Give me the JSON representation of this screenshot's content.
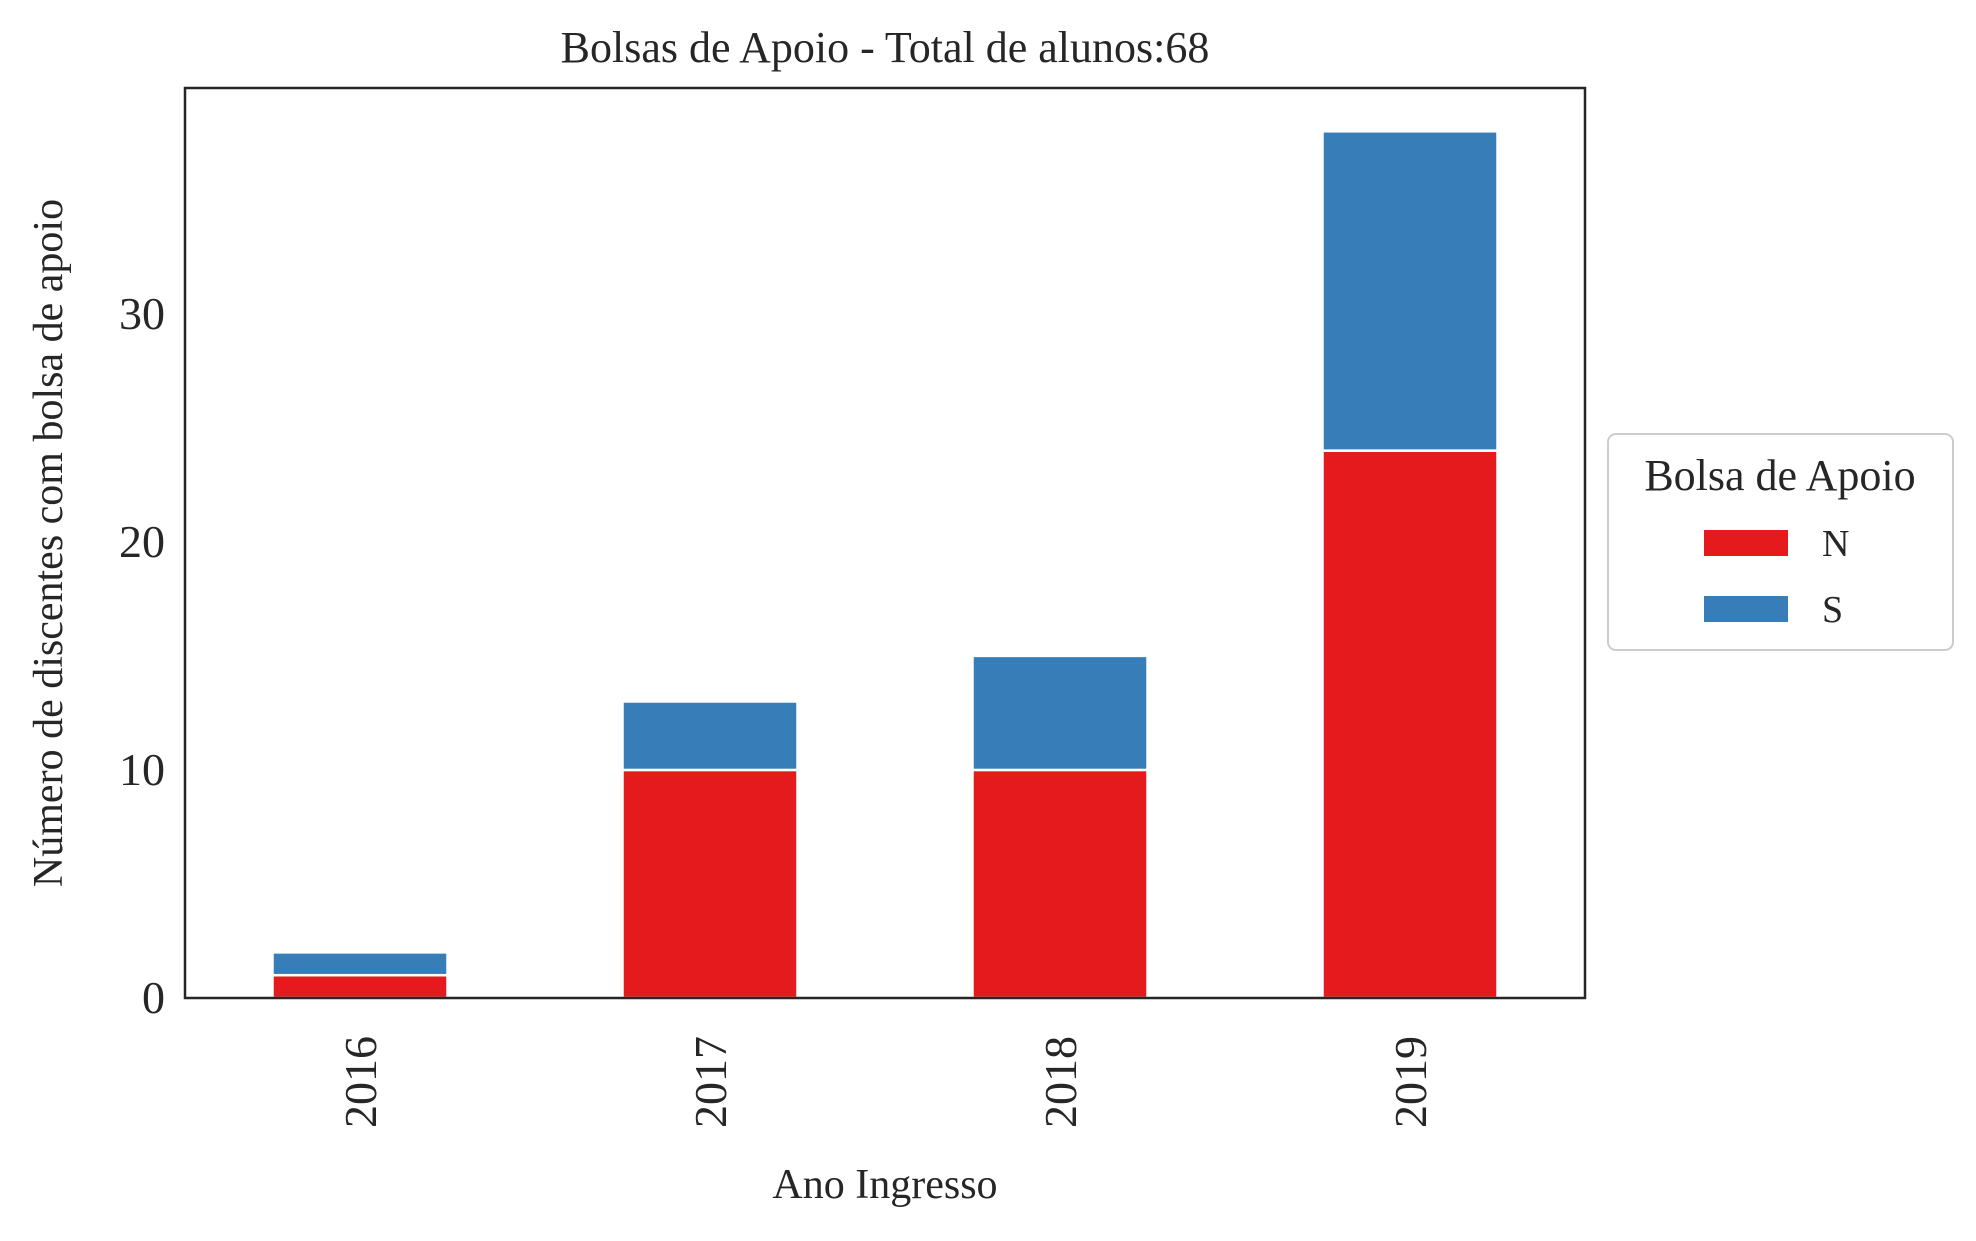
{
  "chart_data": {
    "type": "bar",
    "stacked": true,
    "title": "Bolsas de Apoio - Total de alunos:68",
    "xlabel": "Ano Ingresso",
    "ylabel": "Número de discentes com bolsa de apoio",
    "categories": [
      "2016",
      "2017",
      "2018",
      "2019"
    ],
    "series": [
      {
        "name": "N",
        "values": [
          1,
          10,
          10,
          24
        ],
        "color": "#e41a1c"
      },
      {
        "name": "S",
        "values": [
          1,
          3,
          5,
          14
        ],
        "color": "#377eb8"
      }
    ],
    "ylim": [
      0,
      39.9
    ],
    "yticks": [
      0,
      10,
      20,
      30
    ],
    "xtick_rotation": "vertical",
    "grid": false,
    "legend": {
      "title": "Bolsa de Apoio",
      "placement": "outside-right-center"
    }
  }
}
